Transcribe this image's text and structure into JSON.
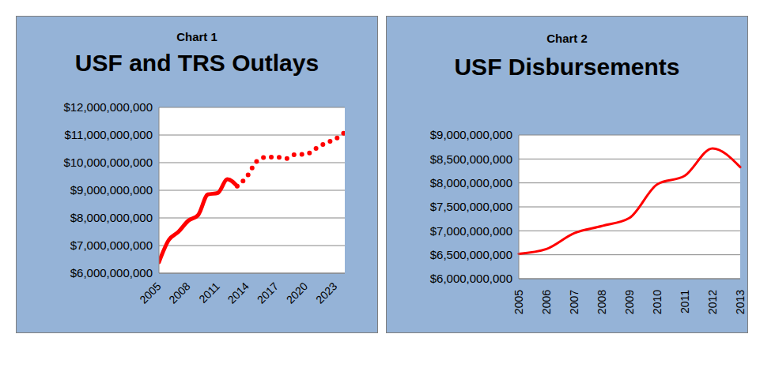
{
  "chart_data": [
    {
      "type": "line",
      "subtitle": "Chart 1",
      "title": "USF and TRS Outlays",
      "x": [
        2005,
        2006,
        2007,
        2008,
        2009,
        2010,
        2011,
        2012,
        2013,
        2014,
        2015,
        2016,
        2017,
        2018,
        2019,
        2020,
        2021,
        2022,
        2023,
        2024
      ],
      "xlim": [
        2005,
        2024
      ],
      "xticks": [
        2005,
        2008,
        2011,
        2014,
        2017,
        2020,
        2023
      ],
      "ylim": [
        6000000000,
        12000000000
      ],
      "yticks": [
        {
          "value": 6000000000,
          "label": "$6,000,000,000"
        },
        {
          "value": 7000000000,
          "label": "$7,000,000,000"
        },
        {
          "value": 8000000000,
          "label": "$8,000,000,000"
        },
        {
          "value": 9000000000,
          "label": "$9,000,000,000"
        },
        {
          "value": 10000000000,
          "label": "$10,000,000,000"
        },
        {
          "value": 11000000000,
          "label": "$11,000,000,000"
        },
        {
          "value": 12000000000,
          "label": "$12,000,000,000"
        }
      ],
      "grid": true,
      "series": [
        {
          "color": "#ff0000",
          "line_style": "solid",
          "values": [
            6400000000,
            7200000000,
            7500000000,
            7900000000,
            8100000000,
            8850000000,
            8900000000,
            9400000000,
            9150000000,
            null,
            null,
            null,
            null,
            null,
            null,
            null,
            null,
            null,
            null,
            null
          ]
        },
        {
          "color": "#ff0000",
          "line_style": "dotted",
          "values": [
            null,
            null,
            null,
            null,
            null,
            null,
            null,
            null,
            9150000000,
            9500000000,
            10050000000,
            10200000000,
            10200000000,
            10150000000,
            10300000000,
            10300000000,
            10500000000,
            10700000000,
            10850000000,
            11100000000
          ]
        }
      ]
    },
    {
      "type": "line",
      "subtitle": "Chart 2",
      "title": "USF Disbursements",
      "categories": [
        "2005",
        "2006",
        "2007",
        "2008",
        "2009",
        "2010",
        "2011",
        "2012",
        "2013"
      ],
      "ylim": [
        6000000000,
        9000000000
      ],
      "yticks": [
        {
          "value": 6000000000,
          "label": "$6,000,000,000"
        },
        {
          "value": 6500000000,
          "label": "$6,500,000,000"
        },
        {
          "value": 7000000000,
          "label": "$7,000,000,000"
        },
        {
          "value": 7500000000,
          "label": "$7,500,000,000"
        },
        {
          "value": 8000000000,
          "label": "$8,000,000,000"
        },
        {
          "value": 8500000000,
          "label": "$8,500,000,000"
        },
        {
          "value": 9000000000,
          "label": "$9,000,000,000"
        }
      ],
      "grid": true,
      "series": [
        {
          "color": "#ff0000",
          "line_style": "solid",
          "values": [
            6520000000,
            6620000000,
            6950000000,
            7100000000,
            7270000000,
            7970000000,
            8150000000,
            8720000000,
            8330000000
          ]
        }
      ]
    }
  ]
}
